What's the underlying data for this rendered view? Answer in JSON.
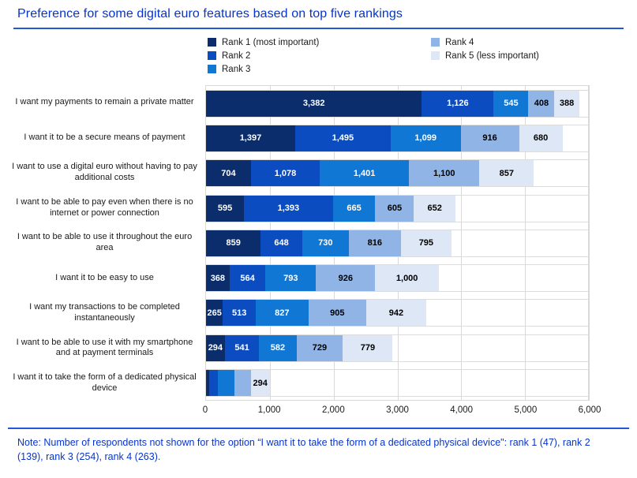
{
  "title": "Preference for some digital euro features based on top five rankings",
  "note": "Note: Number of respondents not shown for the option “I want it to take the form of a dedicated physical device\": rank 1 (47), rank 2 (139), rank 3 (254), rank 4 (263).",
  "colors": {
    "rank1": "#0B2D6B",
    "rank2": "#0B4CC0",
    "rank3": "#1077D4",
    "rank4": "#8FB4E5",
    "rank5": "#DEE7F5",
    "title_blue": "#0634CB",
    "rule_blue": "#2257D9",
    "grid_gray": "#D9D9D9"
  },
  "legend": [
    {
      "label": "Rank 1 (most important)",
      "color": "#0B2D6B"
    },
    {
      "label": "Rank 2",
      "color": "#0B4CC0"
    },
    {
      "label": "Rank 3",
      "color": "#1077D4"
    },
    {
      "label": "Rank 4",
      "color": "#8FB4E5"
    },
    {
      "label": "Rank 5 (less important)",
      "color": "#DEE7F5"
    }
  ],
  "chart_data": {
    "type": "bar",
    "orientation": "horizontal",
    "stacked": true,
    "title": "Preference for some digital euro features based on top five rankings",
    "xlabel": "",
    "ylabel": "",
    "xlim": [
      0,
      6000
    ],
    "x_ticks": [
      "0",
      "1,000",
      "2,000",
      "3,000",
      "4,000",
      "5,000",
      "6,000"
    ],
    "grid": "vertical",
    "legend_position": "top",
    "categories": [
      "I want my payments to remain a private matter",
      "I want it to be a secure means of payment",
      "I want to use a digital euro without having to pay additional costs",
      "I want to be able to pay even when there is no internet or power connection",
      "I want to be able to use it throughout the euro area",
      "I want it to be easy to use",
      "I want my transactions to be completed instantaneously",
      "I want to be able to use it with my smartphone and at payment terminals",
      "I want it to take the form of a dedicated physical device"
    ],
    "series": [
      {
        "name": "Rank 1 (most important)",
        "color": "#0B2D6B",
        "label_color": "#FFFFFF",
        "values": [
          3382,
          1397,
          704,
          595,
          859,
          368,
          265,
          294,
          47
        ]
      },
      {
        "name": "Rank 2",
        "color": "#0B4CC0",
        "label_color": "#FFFFFF",
        "values": [
          1126,
          1495,
          1078,
          1393,
          648,
          564,
          513,
          541,
          139
        ]
      },
      {
        "name": "Rank 3",
        "color": "#1077D4",
        "label_color": "#FFFFFF",
        "values": [
          545,
          1099,
          1401,
          665,
          730,
          793,
          827,
          582,
          254
        ]
      },
      {
        "name": "Rank 4",
        "color": "#8FB4E5",
        "label_color": "#000000",
        "values": [
          408,
          916,
          1100,
          605,
          816,
          926,
          905,
          729,
          263
        ]
      },
      {
        "name": "Rank 5 (less important)",
        "color": "#DEE7F5",
        "label_color": "#000000",
        "values": [
          388,
          680,
          857,
          652,
          795,
          1000,
          942,
          779,
          294
        ]
      }
    ],
    "hidden_value_labels": [
      {
        "category_index": 8,
        "series_indices": [
          0,
          1,
          2,
          3
        ]
      }
    ]
  }
}
